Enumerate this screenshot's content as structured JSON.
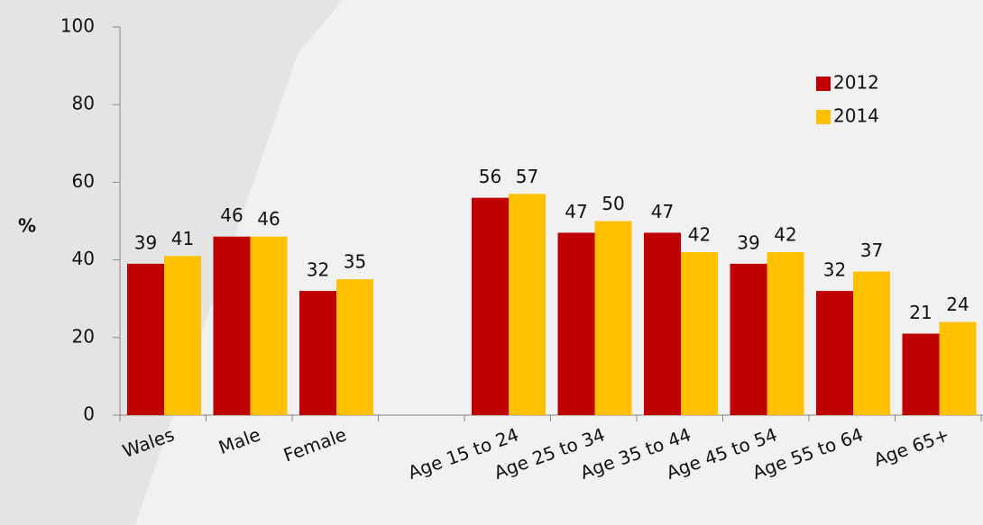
{
  "chart_data": {
    "type": "bar",
    "y_label": "%",
    "categories": [
      "Wales",
      "Male",
      "Female",
      null,
      "Age 15 to 24",
      "Age 25 to 34",
      "Age 35 to 44",
      "Age 45 to 54",
      "Age 55 to 64",
      "Age 65+"
    ],
    "series": [
      {
        "name": "2012",
        "color": "#c00000",
        "values": [
          39,
          46,
          32,
          null,
          56,
          47,
          47,
          39,
          32,
          21
        ]
      },
      {
        "name": "2014",
        "color": "#ffc000",
        "values": [
          41,
          46,
          35,
          null,
          57,
          50,
          42,
          42,
          37,
          24
        ]
      }
    ],
    "ylim": [
      0,
      100
    ],
    "yticks": [
      0,
      20,
      40,
      60,
      80,
      100
    ],
    "grid": false,
    "legend": "upper right"
  }
}
